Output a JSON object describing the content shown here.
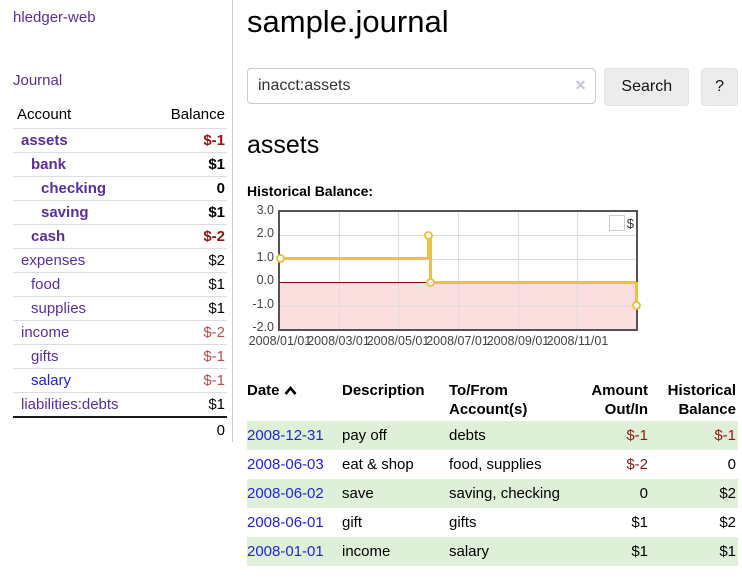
{
  "sidebar": {
    "app_title": "hledger-web",
    "nav": {
      "journal": "Journal"
    },
    "accounts": {
      "headers": {
        "account": "Account",
        "balance": "Balance"
      },
      "rows": [
        {
          "name": "assets",
          "balance": "$-1",
          "indent": 1,
          "bold": true
        },
        {
          "name": "bank",
          "balance": "$1",
          "indent": 2,
          "bold": true
        },
        {
          "name": "checking",
          "balance": "0",
          "indent": 3,
          "bold": true
        },
        {
          "name": "saving",
          "balance": "$1",
          "indent": 3,
          "bold": true
        },
        {
          "name": "cash",
          "balance": "$-2",
          "indent": 2,
          "bold": true
        },
        {
          "name": "expenses",
          "balance": "$2",
          "indent": 1,
          "bold": false
        },
        {
          "name": "food",
          "balance": "$1",
          "indent": 2,
          "bold": false
        },
        {
          "name": "supplies",
          "balance": "$1",
          "indent": 2,
          "bold": false
        },
        {
          "name": "income",
          "balance": "$-2",
          "indent": 1,
          "bold": false
        },
        {
          "name": "gifts",
          "balance": "$-1",
          "indent": 2,
          "bold": false
        },
        {
          "name": "salary",
          "balance": "$-1",
          "indent": 2,
          "bold": false,
          "link_color": "blue"
        },
        {
          "name": "liabilities:debts",
          "balance": "$1",
          "indent": 1,
          "bold": false
        }
      ],
      "total": "0"
    }
  },
  "main": {
    "title": "sample.journal",
    "search": {
      "value": "inacct:assets",
      "clear_label": "✕",
      "search_button": "Search",
      "help_button": "?"
    },
    "account_heading": "assets",
    "section_label": "Historical Balance:"
  },
  "chart_data": {
    "type": "line",
    "title": "Historical Balance",
    "step": true,
    "series": [
      {
        "name": "$",
        "color": "#edc240",
        "points": [
          [
            "2008-01-01",
            1.0
          ],
          [
            "2008-06-01",
            2.0
          ],
          [
            "2008-06-03",
            0.0
          ],
          [
            "2008-12-31",
            -1.0
          ]
        ]
      }
    ],
    "ylim": [
      -2.0,
      3.0
    ],
    "yticks": [
      3.0,
      2.0,
      1.0,
      0.0,
      -1.0,
      -2.0
    ],
    "ytick_labels": [
      "3.0",
      "2.0",
      "1.0",
      "0.0",
      "-1.0",
      "-2.0"
    ],
    "x_range": [
      "2008-01-01",
      "2008-12-31"
    ],
    "xtick_dates": [
      "2008-01-01",
      "2008-03-01",
      "2008-05-01",
      "2008-07-01",
      "2008-09-01",
      "2008-11-01"
    ],
    "xtick_labels": [
      "2008/01/01",
      "2008/03/01",
      "2008/05/01",
      "2008/07/01",
      "2008/09/01",
      "2008/11/01"
    ],
    "grid": true,
    "legend_position": "top-right",
    "negative_region_fill": "#fbdfdf",
    "zero_line_color": "#8b0000"
  },
  "register": {
    "headers": {
      "date": "Date",
      "description": "Description",
      "accounts": "To/From Account(s)",
      "amount": "Amount Out/In",
      "balance": "Historical Balance"
    },
    "sort": {
      "column": "date",
      "direction": "ascending"
    },
    "rows": [
      {
        "date": "2008-12-31",
        "description": "pay off",
        "accounts": [
          "debts"
        ],
        "amount": "$-1",
        "balance": "$-1"
      },
      {
        "date": "2008-06-03",
        "description": "eat & shop",
        "accounts": [
          "food",
          "supplies"
        ],
        "amount": "$-2",
        "balance": "0"
      },
      {
        "date": "2008-06-02",
        "description": "save",
        "accounts": [
          "saving",
          "checking"
        ],
        "amount": "0",
        "balance": "$2"
      },
      {
        "date": "2008-06-01",
        "description": "gift",
        "accounts": [
          "gifts"
        ],
        "amount": "$1",
        "balance": "$2"
      },
      {
        "date": "2008-01-01",
        "description": "income",
        "accounts": [
          "salary"
        ],
        "amount": "$1",
        "balance": "$1"
      }
    ]
  },
  "colors": {
    "link_purple": "#5c2d9c",
    "link_blue": "#2222dd",
    "negative_strong": "#96160f",
    "negative_light": "#b5524c",
    "row_stripe_green": "#dff0d8",
    "chart_line_gold": "#edc240",
    "chart_negative_fill": "#fbdfdf",
    "chart_zero_line": "#8b0000"
  }
}
